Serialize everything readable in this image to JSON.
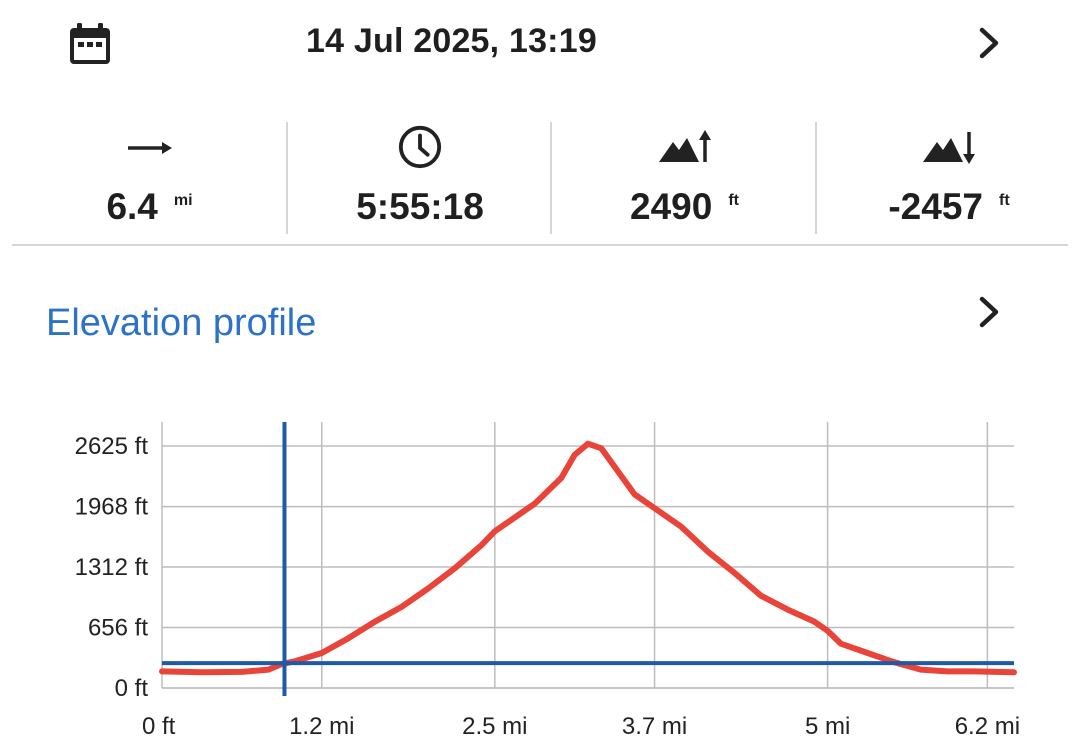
{
  "header": {
    "date_time": "14 Jul 2025, 13:19",
    "calendar_icon": "calendar-icon",
    "next_icon": "chevron-right-icon"
  },
  "stats": [
    {
      "icon": "arrow-right-icon",
      "value": "6.4",
      "unit": "mi"
    },
    {
      "icon": "clock-icon",
      "value": "5:55:18",
      "unit": ""
    },
    {
      "icon": "ascent-icon",
      "value": "2490",
      "unit": "ft"
    },
    {
      "icon": "descent-icon",
      "value": "-2457",
      "unit": "ft"
    }
  ],
  "elevation": {
    "title": "Elevation profile",
    "chevron_icon": "chevron-right-icon"
  },
  "colors": {
    "accent": "#2b72c8",
    "profile_line": "#e8443a",
    "crosshair": "#1f5aa8",
    "grid": "#bdbdbd"
  },
  "chart_data": {
    "type": "line",
    "title": "",
    "xlabel": "",
    "ylabel": "",
    "xlim": [
      0,
      6.4
    ],
    "ylim": [
      0,
      2625
    ],
    "x_ticks": [
      0,
      1.2,
      2.5,
      3.7,
      5,
      6.2
    ],
    "x_tick_labels": [
      "0 ft",
      "1.2 mi",
      "2.5 mi",
      "3.7 mi",
      "5 mi",
      "6.2 mi"
    ],
    "y_ticks": [
      0,
      656,
      1312,
      1968,
      2625
    ],
    "y_tick_labels": [
      "0 ft",
      "656 ft",
      "1312 ft",
      "1968 ft",
      "2625 ft"
    ],
    "grid": true,
    "series": [
      {
        "x": [
          0,
          0.3,
          0.6,
          0.8,
          0.9,
          1.0,
          1.2,
          1.4,
          1.6,
          1.8,
          2.0,
          2.2,
          2.4,
          2.5,
          2.6,
          2.8,
          3.0,
          3.1,
          3.2,
          3.3,
          3.4,
          3.55,
          3.7,
          3.9,
          4.1,
          4.3,
          4.5,
          4.7,
          4.9,
          5.0,
          5.1,
          5.3,
          5.5,
          5.7,
          5.9,
          6.1,
          6.4
        ],
        "y": [
          180,
          170,
          175,
          200,
          260,
          290,
          380,
          540,
          720,
          880,
          1080,
          1300,
          1550,
          1700,
          1800,
          2000,
          2280,
          2530,
          2650,
          2600,
          2400,
          2100,
          1950,
          1750,
          1480,
          1250,
          1000,
          850,
          720,
          620,
          480,
          380,
          280,
          200,
          180,
          180,
          170
        ]
      }
    ],
    "crosshair": {
      "x": 0.92,
      "y": 270
    }
  }
}
